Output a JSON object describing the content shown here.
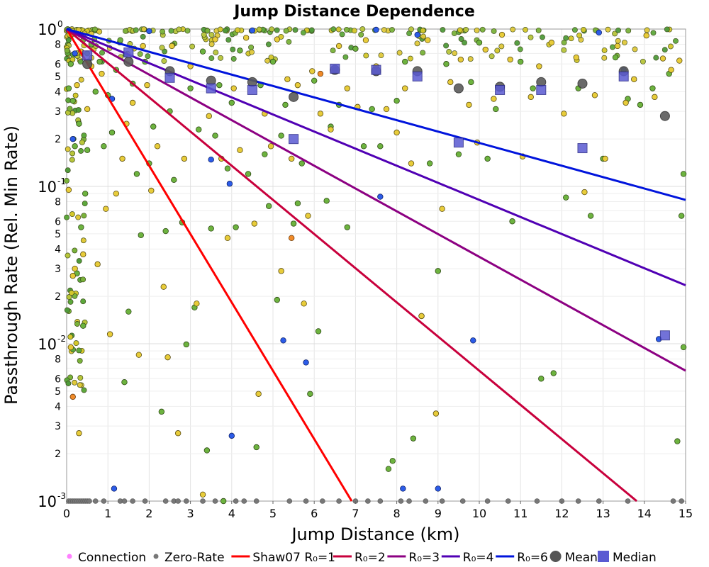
{
  "chart_data": {
    "type": "scatter",
    "title": "Jump Distance Dependence",
    "xlabel": "Jump Distance (km)",
    "ylabel": "Passthrough Rate (Rel. Min Rate)",
    "xlim": [
      0,
      15
    ],
    "ylim": [
      0.001,
      1
    ],
    "yscale": "log",
    "grid": true,
    "x_ticks": [
      0,
      1,
      2,
      3,
      4,
      5,
      6,
      7,
      8,
      9,
      10,
      11,
      12,
      13,
      14,
      15
    ],
    "x_tick_labels": [
      "0",
      "1",
      "2",
      "3",
      "4",
      "5",
      "6",
      "7",
      "8",
      "9",
      "10",
      "11",
      "12",
      "13",
      "14",
      "15"
    ],
    "y_major_ticks": [
      {
        "value": 1,
        "base": "10",
        "exp": "0"
      },
      {
        "value": 0.1,
        "base": "10",
        "exp": "-1"
      },
      {
        "value": 0.01,
        "base": "10",
        "exp": "-2"
      },
      {
        "value": 0.001,
        "base": "10",
        "exp": "-3"
      }
    ],
    "y_minor_tick_labels": [
      "2",
      "3",
      "4",
      "5",
      "6",
      "8"
    ],
    "legend_position": "bottom",
    "legend": [
      {
        "label": "Connection",
        "kind": "dot",
        "color": "#ff80ff"
      },
      {
        "label": "Zero-Rate",
        "kind": "dot",
        "color": "#777777"
      },
      {
        "label": "Shaw07 R₀=1",
        "kind": "line",
        "color": "#ff0000"
      },
      {
        "label": "R₀=2",
        "kind": "line",
        "color": "#c8003c"
      },
      {
        "label": "R₀=3",
        "kind": "line",
        "color": "#8c0082"
      },
      {
        "label": "R₀=4",
        "kind": "line",
        "color": "#5000b4"
      },
      {
        "label": "R₀=6",
        "kind": "line",
        "color": "#0014dc"
      },
      {
        "label": "Mean",
        "kind": "circle",
        "color": "#555555"
      },
      {
        "label": "Median",
        "kind": "square",
        "color": "#5a5ad2"
      }
    ],
    "fit_lines": [
      {
        "name": "Shaw07 R₀=1",
        "r0": 1,
        "color": "#ff0000"
      },
      {
        "name": "R₀=2",
        "r0": 2,
        "color": "#c8003c"
      },
      {
        "name": "R₀=3",
        "r0": 3,
        "color": "#8c0082"
      },
      {
        "name": "R₀=4",
        "r0": 4,
        "color": "#5000b4"
      },
      {
        "name": "R₀=6",
        "r0": 6,
        "color": "#0014dc"
      }
    ],
    "mean": {
      "x": [
        0.5,
        1.5,
        2.5,
        3.5,
        4.5,
        5.5,
        6.5,
        7.5,
        8.5,
        9.5,
        10.5,
        11.5,
        12.5,
        13.5,
        14.5
      ],
      "y": [
        0.6,
        0.62,
        0.54,
        0.47,
        0.46,
        0.37,
        0.55,
        0.54,
        0.54,
        0.42,
        0.43,
        0.46,
        0.45,
        0.54,
        0.28
      ]
    },
    "median": {
      "x": [
        0.5,
        1.5,
        2.5,
        3.5,
        4.5,
        5.5,
        6.5,
        7.5,
        8.5,
        9.5,
        10.5,
        11.5,
        12.5,
        13.5,
        14.5
      ],
      "y": [
        0.68,
        0.71,
        0.49,
        0.42,
        0.41,
        0.2,
        0.56,
        0.55,
        0.5,
        0.19,
        0.41,
        0.41,
        0.175,
        0.5,
        0.0113
      ]
    },
    "zero_rate": {
      "y": 0.001,
      "x": [
        0.05,
        0.1,
        0.15,
        0.2,
        0.25,
        0.3,
        0.35,
        0.4,
        0.45,
        0.5,
        0.55,
        0.7,
        0.9,
        1.3,
        1.4,
        1.6,
        1.9,
        2.4,
        2.6,
        2.7,
        2.9,
        3.3,
        3.6,
        3.8,
        4.1,
        4.3,
        4.6,
        5.4,
        5.8,
        6.2,
        6.6,
        7.0,
        7.3,
        7.6,
        8.1,
        8.3,
        8.7,
        9.1,
        9.6,
        10.2,
        10.7,
        11.4,
        12.0,
        12.4,
        12.9,
        13.6,
        14.7,
        14.9
      ]
    },
    "blue_points": {
      "x": [
        0.05,
        0.15,
        1.15,
        1.1,
        3.5,
        3.95,
        4.0,
        5.25,
        5.8,
        6.5,
        7.6,
        8.15,
        8.5,
        9.0,
        9.85,
        13.5,
        14.35,
        0.2,
        7.5,
        2.0,
        4.5,
        12.9
      ],
      "y": [
        0.98,
        0.2,
        0.0012,
        0.36,
        0.148,
        0.104,
        0.0026,
        0.0105,
        0.0076,
        0.55,
        0.086,
        0.0012,
        0.92,
        0.0012,
        0.0105,
        0.55,
        0.0107,
        0.7,
        0.99,
        0.97,
        0.98,
        0.95
      ]
    },
    "orange_points": [
      [
        0.15,
        0.0046
      ],
      [
        5.45,
        0.047
      ],
      [
        6.15,
        0.52
      ]
    ],
    "green_points": [
      [
        0.05,
        0.42
      ],
      [
        0.1,
        0.6
      ],
      [
        0.15,
        0.35
      ],
      [
        0.2,
        0.18
      ],
      [
        0.25,
        0.028
      ],
      [
        0.3,
        0.25
      ],
      [
        0.35,
        0.055
      ],
      [
        0.4,
        0.013
      ],
      [
        0.45,
        0.09
      ],
      [
        0.5,
        0.17
      ],
      [
        0.6,
        0.8
      ],
      [
        0.7,
        0.4
      ],
      [
        0.8,
        0.62
      ],
      [
        0.9,
        0.18
      ],
      [
        1.0,
        0.38
      ],
      [
        1.1,
        0.22
      ],
      [
        1.2,
        0.55
      ],
      [
        1.3,
        0.85
      ],
      [
        1.4,
        0.0057
      ],
      [
        1.5,
        0.016
      ],
      [
        1.6,
        0.45
      ],
      [
        1.7,
        0.12
      ],
      [
        1.8,
        0.049
      ],
      [
        1.9,
        0.62
      ],
      [
        2.0,
        0.14
      ],
      [
        2.1,
        0.24
      ],
      [
        2.3,
        0.0037
      ],
      [
        2.4,
        0.052
      ],
      [
        2.5,
        0.3
      ],
      [
        2.6,
        0.11
      ],
      [
        2.8,
        0.059
      ],
      [
        2.9,
        0.0099
      ],
      [
        3.0,
        0.42
      ],
      [
        3.1,
        0.017
      ],
      [
        3.2,
        0.23
      ],
      [
        3.3,
        0.72
      ],
      [
        3.4,
        0.0021
      ],
      [
        3.5,
        0.054
      ],
      [
        3.6,
        0.21
      ],
      [
        3.7,
        0.44
      ],
      [
        3.8,
        0.001
      ],
      [
        3.9,
        0.13
      ],
      [
        4.0,
        0.34
      ],
      [
        4.1,
        0.055
      ],
      [
        4.2,
        0.73
      ],
      [
        4.4,
        0.12
      ],
      [
        4.6,
        0.0022
      ],
      [
        4.7,
        0.44
      ],
      [
        4.8,
        0.16
      ],
      [
        4.9,
        0.075
      ],
      [
        5.0,
        0.62
      ],
      [
        5.1,
        0.019
      ],
      [
        5.2,
        0.21
      ],
      [
        5.3,
        0.33
      ],
      [
        5.5,
        0.058
      ],
      [
        5.6,
        0.078
      ],
      [
        5.7,
        0.14
      ],
      [
        5.9,
        0.0048
      ],
      [
        6.0,
        0.47
      ],
      [
        6.1,
        0.012
      ],
      [
        6.3,
        0.081
      ],
      [
        6.4,
        0.24
      ],
      [
        6.6,
        0.33
      ],
      [
        6.8,
        0.055
      ],
      [
        7.0,
        0.75
      ],
      [
        7.2,
        0.18
      ],
      [
        7.4,
        0.31
      ],
      [
        7.6,
        0.18
      ],
      [
        7.8,
        0.0016
      ],
      [
        7.9,
        0.0018
      ],
      [
        8.0,
        0.35
      ],
      [
        8.2,
        0.62
      ],
      [
        8.4,
        0.0025
      ],
      [
        8.6,
        0.015
      ],
      [
        8.8,
        0.14
      ],
      [
        9.0,
        0.029
      ],
      [
        9.2,
        0.6
      ],
      [
        9.5,
        0.16
      ],
      [
        9.8,
        0.46
      ],
      [
        10.0,
        0.82
      ],
      [
        10.2,
        0.15
      ],
      [
        10.4,
        0.31
      ],
      [
        10.8,
        0.06
      ],
      [
        11.0,
        0.62
      ],
      [
        11.3,
        0.42
      ],
      [
        11.5,
        0.006
      ],
      [
        11.8,
        0.0065
      ],
      [
        12.1,
        0.085
      ],
      [
        12.4,
        0.42
      ],
      [
        12.7,
        0.065
      ],
      [
        13.0,
        0.15
      ],
      [
        13.3,
        0.66
      ],
      [
        13.6,
        0.36
      ],
      [
        13.9,
        0.33
      ],
      [
        14.2,
        0.42
      ],
      [
        14.6,
        0.52
      ],
      [
        14.8,
        0.0024
      ],
      [
        14.9,
        0.065
      ],
      [
        14.95,
        0.12
      ],
      [
        14.95,
        0.0095
      ]
    ],
    "yellow_points": [
      [
        0.05,
        0.095
      ],
      [
        0.1,
        0.0095
      ],
      [
        0.15,
        0.027
      ],
      [
        0.2,
        0.03
      ],
      [
        0.25,
        0.44
      ],
      [
        0.3,
        0.0027
      ],
      [
        0.35,
        0.72
      ],
      [
        0.4,
        0.037
      ],
      [
        0.5,
        0.31
      ],
      [
        0.6,
        0.58
      ],
      [
        0.75,
        0.032
      ],
      [
        0.85,
        0.52
      ],
      [
        0.95,
        0.072
      ],
      [
        1.05,
        0.0115
      ],
      [
        1.2,
        0.09
      ],
      [
        1.35,
        0.15
      ],
      [
        1.45,
        0.25
      ],
      [
        1.6,
        0.34
      ],
      [
        1.75,
        0.0085
      ],
      [
        1.85,
        0.78
      ],
      [
        1.95,
        0.44
      ],
      [
        2.05,
        0.094
      ],
      [
        2.2,
        0.18
      ],
      [
        2.35,
        0.023
      ],
      [
        2.45,
        0.0082
      ],
      [
        2.55,
        0.78
      ],
      [
        2.7,
        0.0027
      ],
      [
        2.85,
        0.15
      ],
      [
        3.0,
        0.58
      ],
      [
        3.15,
        0.018
      ],
      [
        3.3,
        0.0011
      ],
      [
        3.45,
        0.28
      ],
      [
        3.6,
        0.86
      ],
      [
        3.75,
        0.15
      ],
      [
        3.9,
        0.047
      ],
      [
        4.05,
        0.42
      ],
      [
        4.2,
        0.17
      ],
      [
        4.35,
        0.88
      ],
      [
        4.55,
        0.058
      ],
      [
        4.65,
        0.0048
      ],
      [
        4.8,
        0.29
      ],
      [
        4.95,
        0.18
      ],
      [
        5.1,
        0.86
      ],
      [
        5.2,
        0.029
      ],
      [
        5.35,
        0.48
      ],
      [
        5.45,
        0.15
      ],
      [
        5.6,
        0.44
      ],
      [
        5.75,
        0.018
      ],
      [
        5.85,
        0.065
      ],
      [
        5.95,
        0.54
      ],
      [
        6.15,
        0.29
      ],
      [
        6.4,
        0.23
      ],
      [
        6.6,
        0.78
      ],
      [
        6.8,
        0.42
      ],
      [
        7.05,
        0.32
      ],
      [
        7.25,
        0.85
      ],
      [
        7.5,
        0.58
      ],
      [
        7.75,
        0.31
      ],
      [
        8.0,
        0.22
      ],
      [
        8.2,
        0.42
      ],
      [
        8.35,
        0.14
      ],
      [
        8.6,
        0.015
      ],
      [
        8.75,
        0.85
      ],
      [
        8.95,
        0.0036
      ],
      [
        9.1,
        0.072
      ],
      [
        9.3,
        0.46
      ],
      [
        9.55,
        0.64
      ],
      [
        9.75,
        0.33
      ],
      [
        9.95,
        0.19
      ],
      [
        10.15,
        0.74
      ],
      [
        10.35,
        0.36
      ],
      [
        10.55,
        0.92
      ],
      [
        10.75,
        0.64
      ],
      [
        11.05,
        0.155
      ],
      [
        11.25,
        0.37
      ],
      [
        11.45,
        0.58
      ],
      [
        11.75,
        0.82
      ],
      [
        12.05,
        0.29
      ],
      [
        12.35,
        0.66
      ],
      [
        12.55,
        0.092
      ],
      [
        12.8,
        0.38
      ],
      [
        13.05,
        0.15
      ],
      [
        13.35,
        0.78
      ],
      [
        13.55,
        0.34
      ],
      [
        13.75,
        0.48
      ],
      [
        14.05,
        0.91
      ],
      [
        14.25,
        0.37
      ],
      [
        14.45,
        0.65
      ],
      [
        14.65,
        0.55
      ],
      [
        14.85,
        0.63
      ]
    ],
    "dense_top_band": {
      "y_range": [
        0.62,
        1.0
      ],
      "count": 230
    }
  }
}
